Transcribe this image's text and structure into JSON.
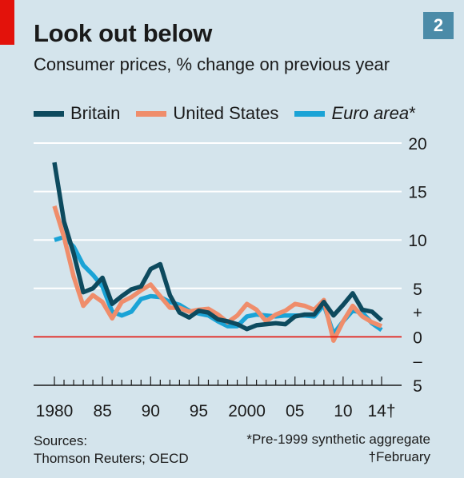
{
  "badge": "2",
  "title": "Look out below",
  "subtitle": "Consumer prices, % change on previous year",
  "legend": [
    {
      "name": "Britain",
      "color": "#0d4a5e",
      "italic": false
    },
    {
      "name": "United States",
      "color": "#ef8d6b",
      "italic": false
    },
    {
      "name": "Euro area",
      "suffix": "*",
      "color": "#1aa3d6",
      "italic": true
    }
  ],
  "sources": {
    "label": "Sources:",
    "text": "Thomson Reuters; OECD"
  },
  "notes": [
    "*Pre-1999 synthetic aggregate",
    "†February"
  ],
  "chart_data": {
    "type": "line",
    "title": "Look out below",
    "subtitle": "Consumer prices, % change on previous year",
    "ylim": [
      -5,
      20
    ],
    "yticks": [
      20,
      15,
      10,
      5,
      0,
      -5
    ],
    "ytick_labels": [
      "20",
      "15",
      "10",
      "5",
      "0",
      "5"
    ],
    "sign_markers": {
      "plus": "+",
      "minus": "–"
    },
    "zero_line_color": "#e3120b",
    "grid": true,
    "xlim": [
      1980,
      2014
    ],
    "xtick_labels": [
      {
        "x": 1980,
        "label": "1980"
      },
      {
        "x": 1985,
        "label": "85"
      },
      {
        "x": 1990,
        "label": "90"
      },
      {
        "x": 1995,
        "label": "95"
      },
      {
        "x": 2000,
        "label": "2000"
      },
      {
        "x": 2005,
        "label": "05"
      },
      {
        "x": 2010,
        "label": "10"
      },
      {
        "x": 2014,
        "label": "14†"
      }
    ],
    "x": [
      1980,
      1981,
      1982,
      1983,
      1984,
      1985,
      1986,
      1987,
      1988,
      1989,
      1990,
      1991,
      1992,
      1993,
      1994,
      1995,
      1996,
      1997,
      1998,
      1999,
      2000,
      2001,
      2002,
      2003,
      2004,
      2005,
      2006,
      2007,
      2008,
      2009,
      2010,
      2011,
      2012,
      2013,
      2014
    ],
    "series": [
      {
        "name": "Britain",
        "color": "#0d4a5e",
        "values": [
          18.0,
          11.9,
          8.6,
          4.6,
          5.0,
          6.1,
          3.4,
          4.2,
          4.9,
          5.2,
          7.0,
          7.5,
          4.3,
          2.5,
          2.0,
          2.7,
          2.5,
          1.8,
          1.6,
          1.3,
          0.8,
          1.2,
          1.3,
          1.4,
          1.3,
          2.1,
          2.3,
          2.3,
          3.6,
          2.2,
          3.3,
          4.5,
          2.8,
          2.6,
          1.7
        ]
      },
      {
        "name": "United States",
        "color": "#ef8d6b",
        "values": [
          13.5,
          10.3,
          6.2,
          3.2,
          4.3,
          3.6,
          1.9,
          3.6,
          4.1,
          4.8,
          5.4,
          4.2,
          3.0,
          3.0,
          2.6,
          2.8,
          2.9,
          2.3,
          1.5,
          2.2,
          3.4,
          2.8,
          1.6,
          2.3,
          2.7,
          3.4,
          3.2,
          2.8,
          3.8,
          -0.4,
          1.6,
          3.2,
          2.1,
          1.5,
          1.1
        ]
      },
      {
        "name": "Euro area",
        "color": "#1aa3d6",
        "values": [
          10.0,
          10.3,
          9.3,
          7.4,
          6.4,
          5.2,
          2.6,
          2.2,
          2.6,
          3.9,
          4.2,
          4.1,
          3.6,
          3.3,
          2.7,
          2.4,
          2.2,
          1.6,
          1.1,
          1.1,
          2.1,
          2.3,
          2.2,
          2.1,
          2.2,
          2.2,
          2.2,
          2.1,
          3.3,
          0.3,
          1.6,
          2.7,
          2.5,
          1.4,
          0.7
        ]
      }
    ]
  }
}
